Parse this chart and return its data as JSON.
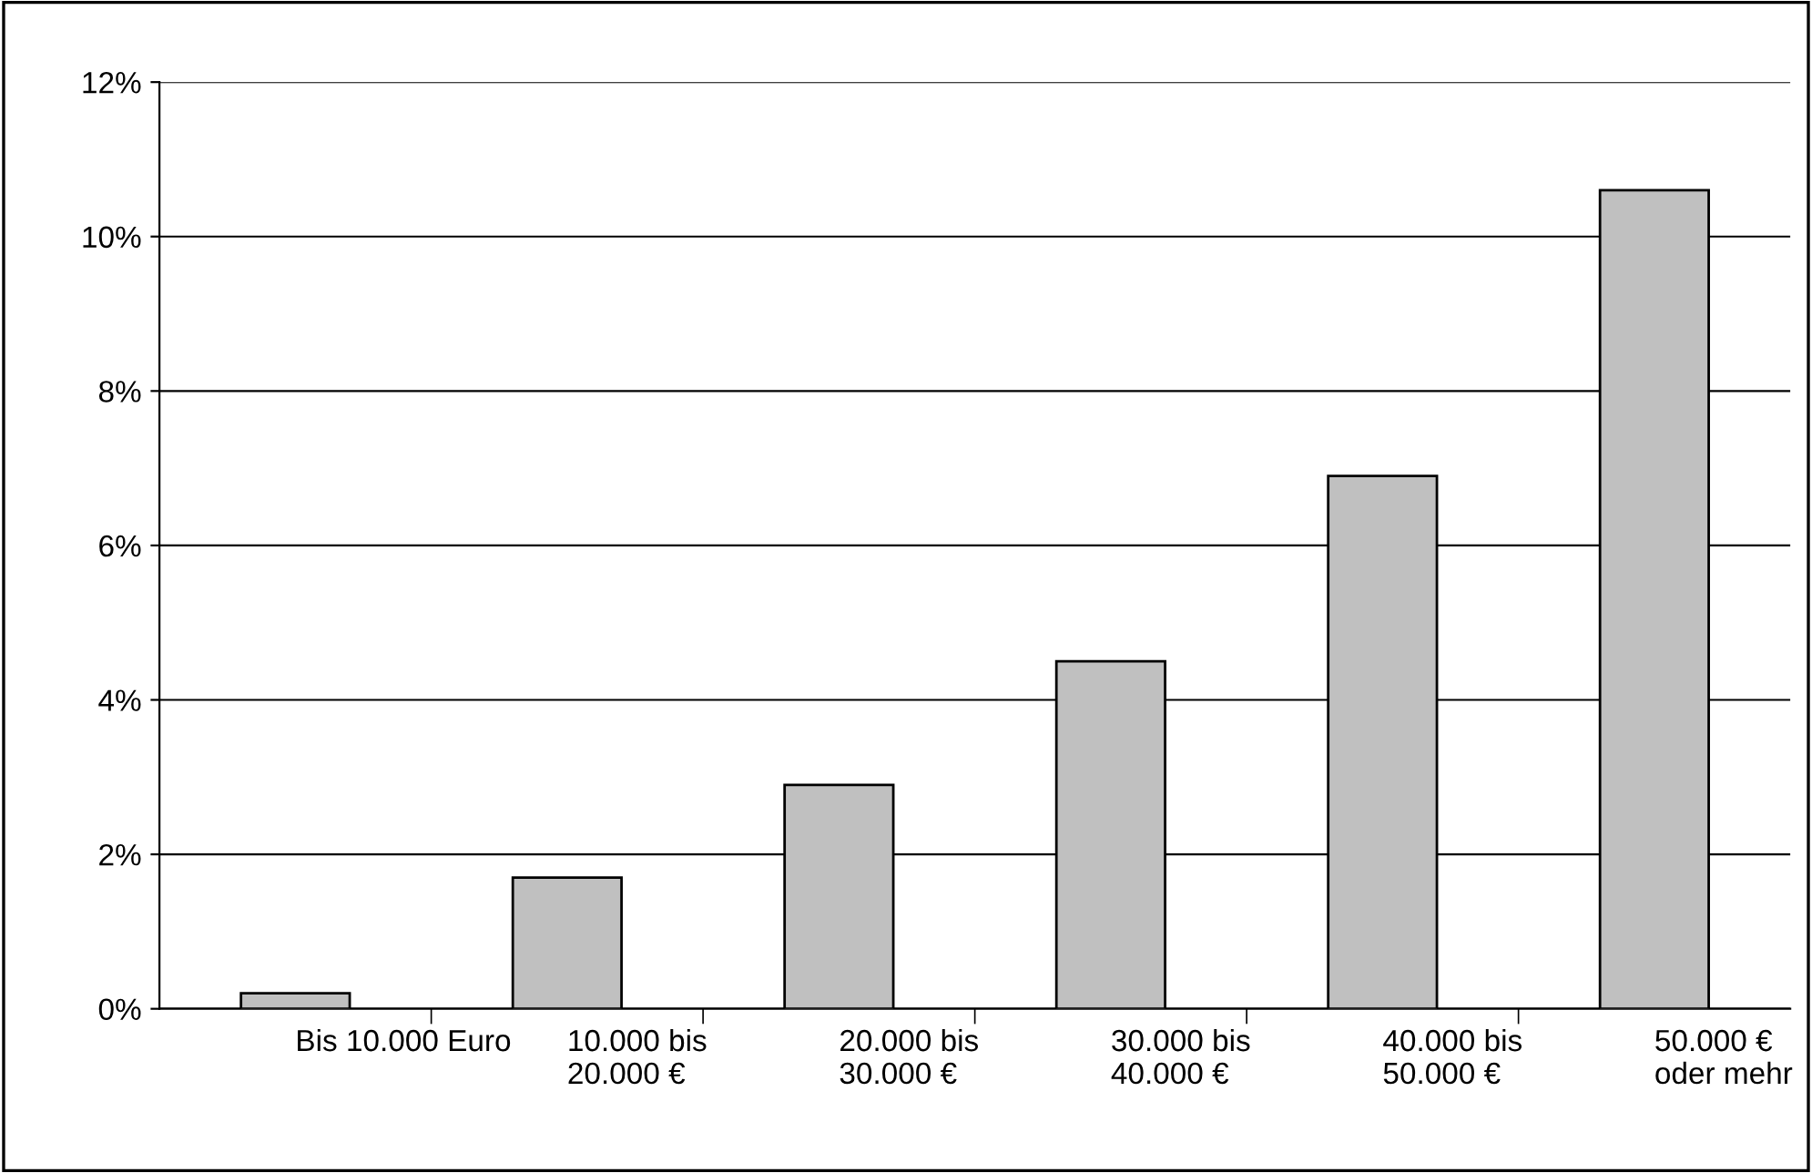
{
  "chart_data": {
    "type": "bar",
    "categories": [
      "Bis 10.000 Euro",
      "10.000 bis\n20.000 €",
      "20.000 bis\n30.000 €",
      "30.000 bis\n40.000 €",
      "40.000 bis\n50.000 €",
      "50.000 €\noder mehr"
    ],
    "values": [
      0.2,
      1.7,
      2.9,
      4.5,
      6.9,
      10.6
    ],
    "color": "#c0c0c0",
    "ylim": [
      0,
      12
    ],
    "yticks": [
      {
        "value": 0,
        "label": "0%"
      },
      {
        "value": 2,
        "label": "2%"
      },
      {
        "value": 4,
        "label": "4%"
      },
      {
        "value": 6,
        "label": "6%"
      },
      {
        "value": 8,
        "label": "8%"
      },
      {
        "value": 10,
        "label": "10%"
      },
      {
        "value": 12,
        "label": "12%"
      }
    ],
    "grid": "y"
  }
}
